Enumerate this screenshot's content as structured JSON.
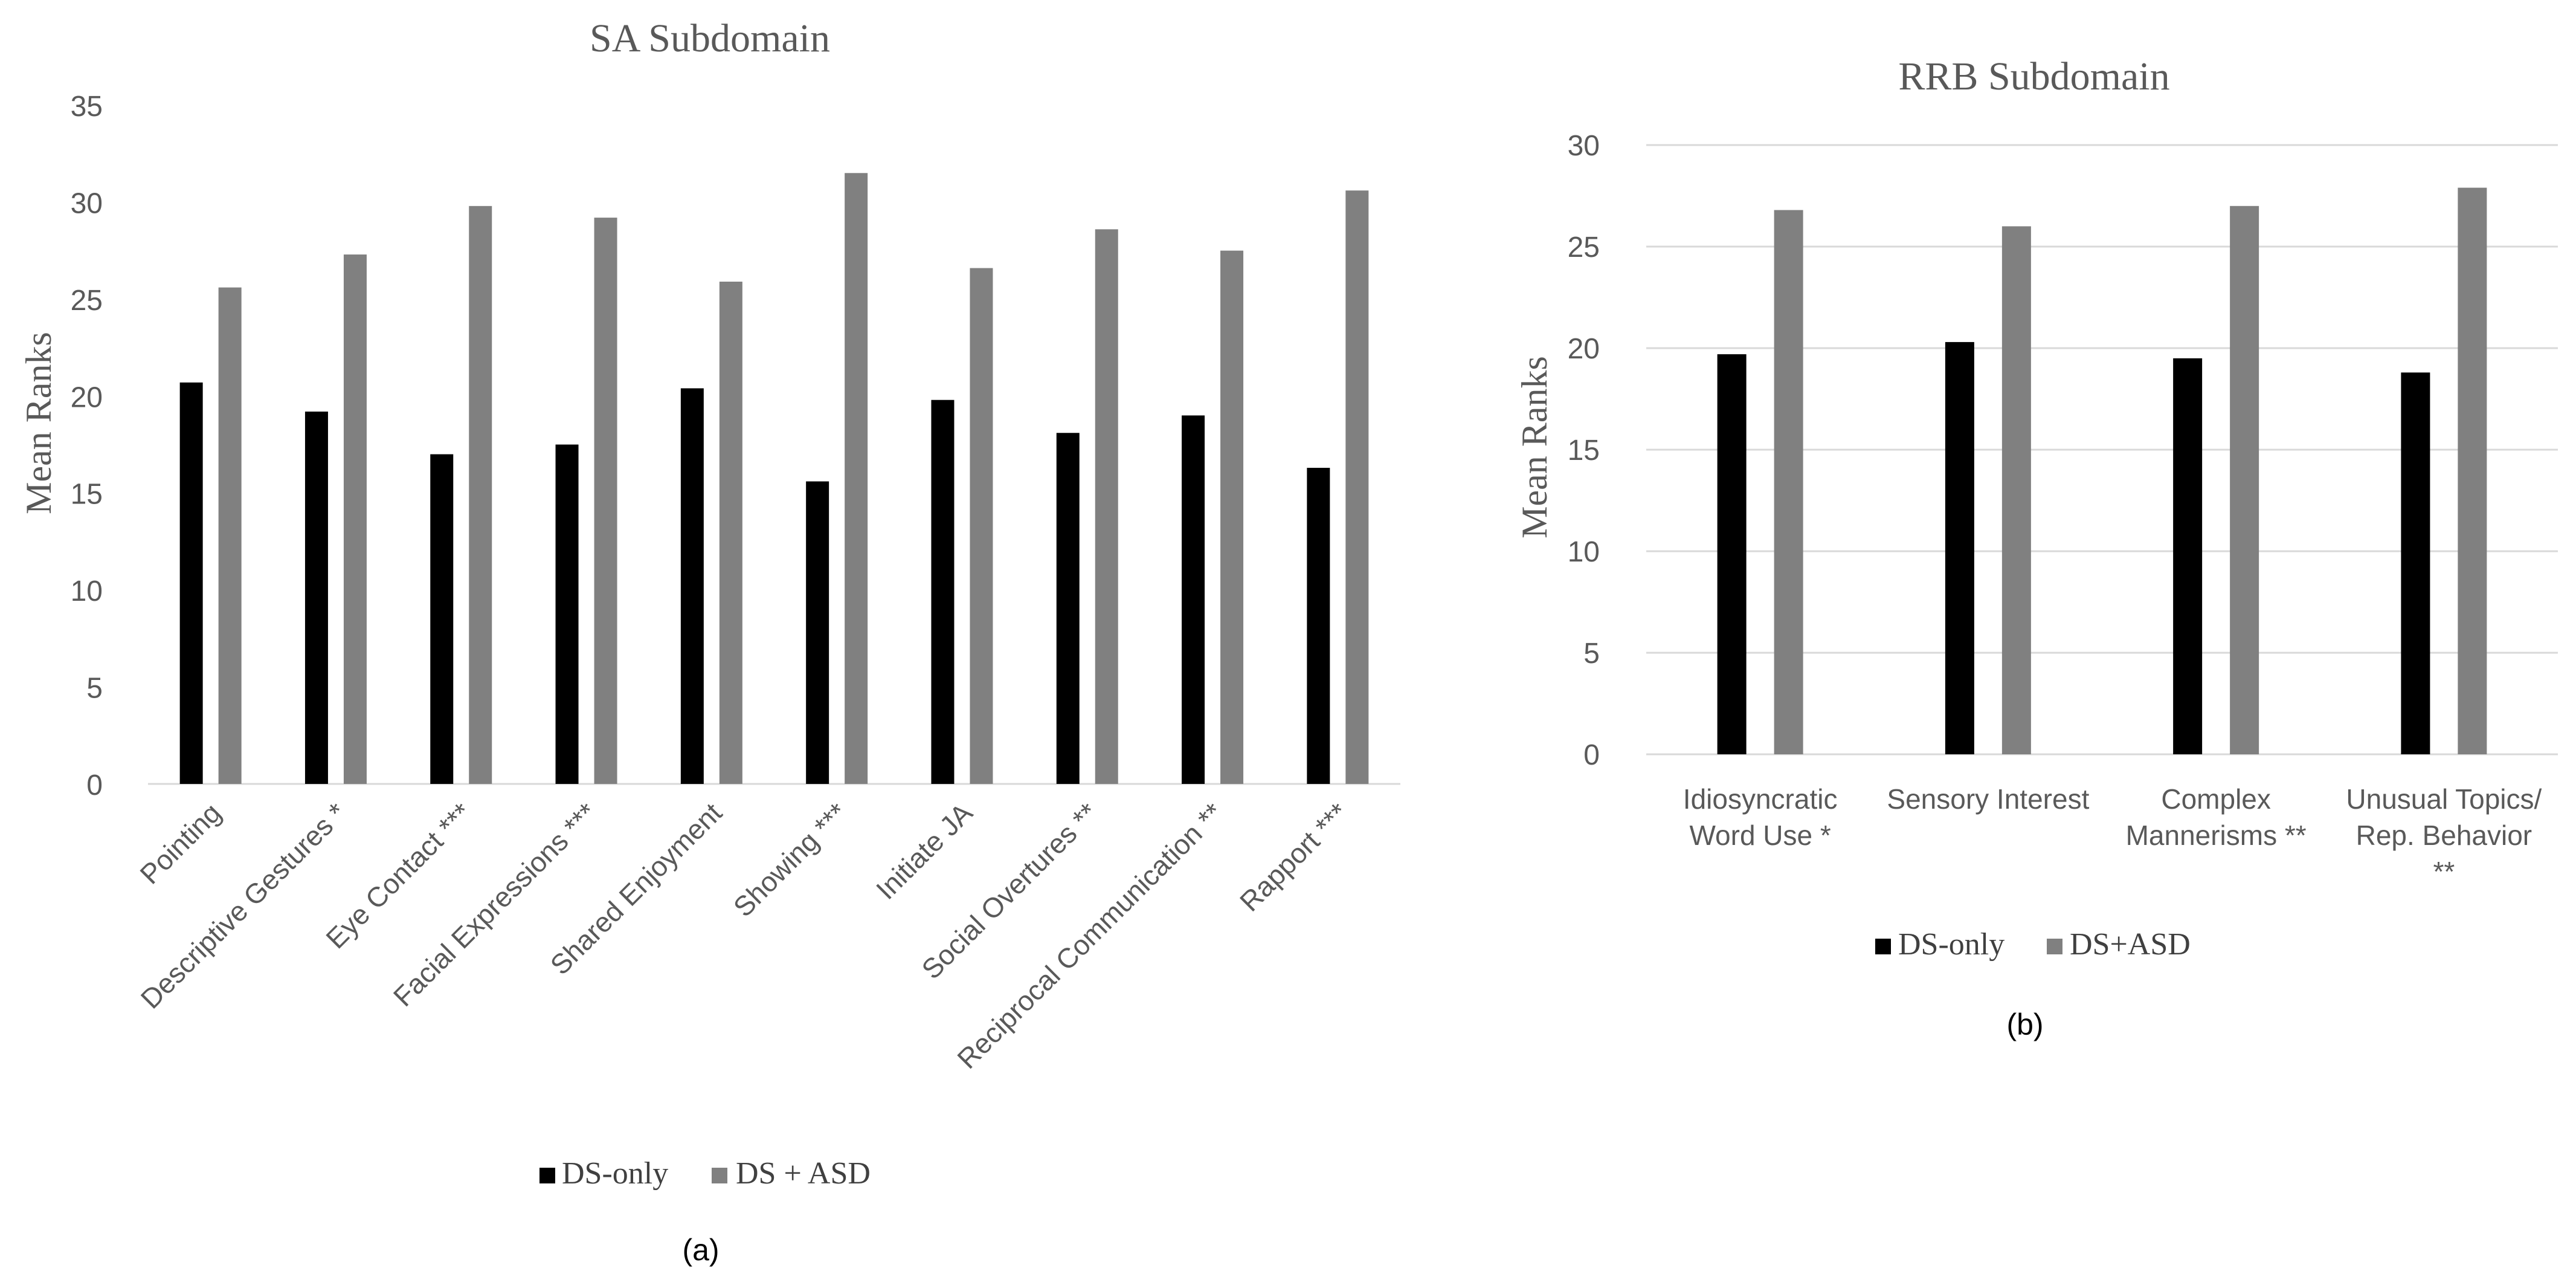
{
  "colors": {
    "ds_only": "#000000",
    "ds_asd": "#808080",
    "axis": "#d9d9d9",
    "grid": "#d9d9d9"
  },
  "chart_data": [
    {
      "type": "bar",
      "title": "SA Subdomain",
      "ylabel": "Mean Ranks",
      "xlabel": "",
      "ylim": [
        0,
        35
      ],
      "yticks": [
        0,
        5,
        10,
        15,
        20,
        25,
        30,
        35
      ],
      "grid": false,
      "categories": [
        "Pointing",
        "Descriptive Gestures *",
        "Eye Contact ***",
        "Facial Expressions ***",
        "Shared Enjoyment",
        "Showing ***",
        "Initiate JA",
        "Social Overtures **",
        "Reciprocal Communication **",
        "Rapport ***"
      ],
      "series": [
        {
          "name": "DS-only",
          "values": [
            20.7,
            19.2,
            17.0,
            17.5,
            20.4,
            15.6,
            19.8,
            18.1,
            19.0,
            16.3
          ]
        },
        {
          "name": "DS + ASD",
          "values": [
            25.6,
            27.3,
            29.8,
            29.2,
            25.9,
            31.5,
            26.6,
            28.6,
            27.5,
            30.6
          ]
        }
      ],
      "legend_position": "bottom",
      "panel_label": "(a)"
    },
    {
      "type": "bar",
      "title": "RRB Subdomain",
      "ylabel": "Mean Ranks",
      "xlabel": "",
      "ylim": [
        0,
        30
      ],
      "yticks": [
        0,
        5,
        10,
        15,
        20,
        25,
        30
      ],
      "grid": true,
      "categories": [
        [
          "Idiosyncratic",
          "Word Use *"
        ],
        [
          "Sensory Interest"
        ],
        [
          "Complex",
          "Mannerisms **"
        ],
        [
          "Unusual Topics/",
          "Rep. Behavior",
          "**"
        ]
      ],
      "series": [
        {
          "name": "DS-only",
          "values": [
            19.7,
            20.3,
            19.5,
            18.8
          ]
        },
        {
          "name": "DS+ASD",
          "values": [
            26.8,
            26.0,
            27.0,
            27.9
          ]
        }
      ],
      "legend_position": "bottom",
      "panel_label": "(b)"
    }
  ]
}
